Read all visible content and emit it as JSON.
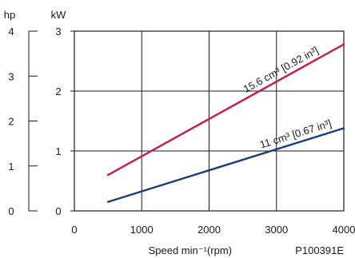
{
  "chart_data": {
    "type": "line",
    "xlabel": "Speed min⁻¹(rpm)",
    "xlim": [
      0,
      4000
    ],
    "x_ticks": [
      "0",
      "1000",
      "2000",
      "3000",
      "4000"
    ],
    "y_axes": [
      {
        "unit": "kW",
        "ylim": [
          0,
          3
        ],
        "ticks": [
          "0",
          "1",
          "2",
          "3"
        ]
      },
      {
        "unit": "hp",
        "ylim": [
          0,
          4
        ],
        "ticks": [
          "0",
          "1",
          "2",
          "3",
          "4"
        ]
      }
    ],
    "grid": true,
    "series": [
      {
        "name": "15.6 cm³ [0.92 in³]",
        "color": "#c8174a",
        "x": [
          500,
          4000
        ],
        "y": [
          0.6,
          2.78
        ]
      },
      {
        "name": "11 cm³ [0.67 in³]",
        "color": "#163e7a",
        "x": [
          500,
          4000
        ],
        "y": [
          0.15,
          1.38
        ]
      }
    ],
    "figure_code": "P100391E"
  }
}
